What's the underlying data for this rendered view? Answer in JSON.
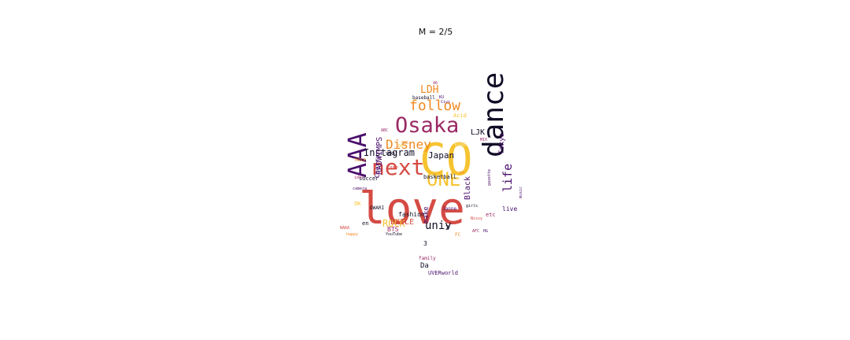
{
  "title": "M = 2/5",
  "palette": {
    "black": "#100c25",
    "purple": "#4a0f6b",
    "magenta": "#9b2964",
    "red": "#d54b43",
    "orange": "#f08a23",
    "yellow": "#f6c330",
    "light": "#f9e59a"
  },
  "words": [
    {
      "text": "CO",
      "color": "#f6c330"
    },
    {
      "text": "love",
      "color": "#d54b43"
    },
    {
      "text": "dance",
      "color": "#100c25"
    },
    {
      "text": "AAA",
      "color": "#4a0f6b"
    },
    {
      "text": "Osaka",
      "color": "#9b2964"
    },
    {
      "text": "next",
      "color": "#d54b43"
    },
    {
      "text": "ONE",
      "color": "#f6c330"
    },
    {
      "text": "follow",
      "color": "#f08a23"
    },
    {
      "text": "Disney",
      "color": "#f08a23"
    },
    {
      "text": "life",
      "color": "#4a0f6b"
    },
    {
      "text": "univ",
      "color": "#100c25"
    },
    {
      "text": "LDH",
      "color": "#f08a23"
    },
    {
      "text": "ROCK",
      "color": "#f6c330"
    },
    {
      "text": "Instagram",
      "color": "#100c25"
    },
    {
      "text": "Japan",
      "color": "#100c25"
    },
    {
      "text": "EXILE",
      "color": "#d54b43"
    },
    {
      "text": "LJK",
      "color": "#100c25"
    },
    {
      "text": "Tokyo",
      "color": "#4a0f6b"
    },
    {
      "text": "RADWIMPS",
      "color": "#4a0f6b"
    },
    {
      "text": "fashion",
      "color": "#100c25"
    },
    {
      "text": "Black",
      "color": "#4a0f6b"
    },
    {
      "text": "make",
      "color": "#4a0f6b"
    },
    {
      "text": "Cherry",
      "color": "#4a0f6b"
    },
    {
      "text": "BTS",
      "color": "#9b2964"
    },
    {
      "text": "soccer",
      "color": "#100c25"
    },
    {
      "text": "baseball",
      "color": "#100c25"
    },
    {
      "text": "basketball",
      "color": "#100c25"
    },
    {
      "text": "Acid",
      "color": "#f6c330"
    },
    {
      "text": "live",
      "color": "#4a0f6b"
    },
    {
      "text": "UVERworld",
      "color": "#4a0f6b"
    },
    {
      "text": "family",
      "color": "#9b2964"
    },
    {
      "text": "YouTube",
      "color": "#100c25"
    },
    {
      "text": "Da",
      "color": "#100c25"
    },
    {
      "text": "3",
      "color": "#100c25"
    },
    {
      "text": "2",
      "color": "#100c25"
    },
    {
      "text": "etc",
      "color": "#9b2964"
    },
    {
      "text": "en",
      "color": "#100c25"
    },
    {
      "text": "OWARI",
      "color": "#100c25"
    },
    {
      "text": "OK",
      "color": "#f6c330"
    },
    {
      "text": "KU",
      "color": "#4a0f6b"
    },
    {
      "text": "Civi",
      "color": "#4a0f6b"
    },
    {
      "text": "SEKAI",
      "color": "#100c25"
    },
    {
      "text": "gazette",
      "color": "#4a0f6b"
    },
    {
      "text": "Janne",
      "color": "#4a0f6b"
    },
    {
      "text": "camera",
      "color": "#4a0f6b"
    },
    {
      "text": "NARA",
      "color": "#d54b43"
    },
    {
      "text": "happy",
      "color": "#f08a23"
    },
    {
      "text": "music",
      "color": "#4a0f6b"
    },
    {
      "text": "JUMP",
      "color": "#d54b43"
    },
    {
      "text": "idol",
      "color": "#9b2964"
    },
    {
      "text": "KOBE",
      "color": "#f9e59a"
    },
    {
      "text": "AFC",
      "color": "#9b2964"
    },
    {
      "text": "HG",
      "color": "#4a0f6b"
    },
    {
      "text": "FC",
      "color": "#f08a23"
    },
    {
      "text": "46",
      "color": "#9b2964"
    },
    {
      "text": "SNS",
      "color": "#f08a23"
    },
    {
      "text": "girls",
      "color": "#100c25"
    },
    {
      "text": "Nissy",
      "color": "#d54b43"
    },
    {
      "text": "TWICE",
      "color": "#f08a23"
    },
    {
      "text": "MIX",
      "color": "#9b2964"
    },
    {
      "text": "DA",
      "color": "#f6c330"
    },
    {
      "text": "GO",
      "color": "#f08a23"
    },
    {
      "text": "ABC",
      "color": "#9b2964"
    }
  ]
}
